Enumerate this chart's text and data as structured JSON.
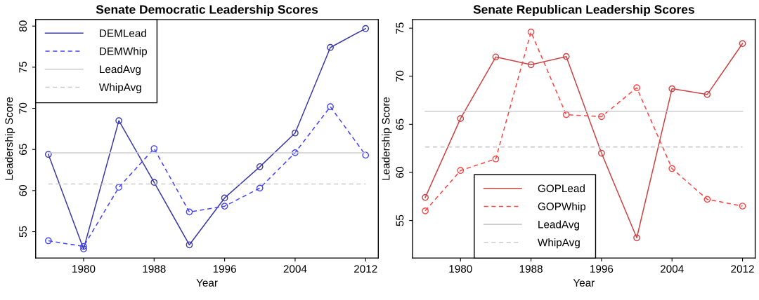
{
  "chart_data": [
    {
      "type": "line",
      "title": "Senate Democratic Leadership Scores",
      "xlabel": "Year",
      "ylabel": "Leadership Score",
      "x": [
        1976,
        1980,
        1984,
        1988,
        1992,
        1996,
        2000,
        2004,
        2008,
        2012
      ],
      "series": [
        {
          "name": "DEMLead",
          "color": "#3b3ba8",
          "line_style": "solid",
          "values": [
            64.4,
            52.9,
            68.5,
            61.0,
            53.4,
            59.1,
            62.9,
            67.0,
            77.4,
            79.7
          ]
        },
        {
          "name": "DEMWhip",
          "color": "#4444ff",
          "line_style": "dashed",
          "values": [
            53.9,
            53.2,
            60.4,
            65.1,
            57.4,
            58.1,
            60.3,
            64.6,
            70.2,
            64.3
          ]
        }
      ],
      "ref_lines": [
        {
          "axis": "y",
          "value": 64.6,
          "label": "LeadAvg",
          "color": "#cccccc",
          "line_style": "solid"
        },
        {
          "axis": "y",
          "value": 60.8,
          "label": "WhipAvg",
          "color": "#cccccc",
          "line_style": "dashed"
        }
      ],
      "xlim": [
        1974.56,
        2013.44
      ],
      "xticks": [
        1980,
        1988,
        1996,
        2004,
        2012
      ],
      "ylim": [
        51.8,
        80.8
      ],
      "yticks": [
        55,
        60,
        65,
        70,
        75,
        80
      ],
      "marker": "circle",
      "grid": false,
      "legend": "top left"
    },
    {
      "type": "line",
      "title": "Senate Republican Leadership Scores",
      "xlabel": "Year",
      "ylabel": "Leadership Score",
      "x": [
        1976,
        1980,
        1984,
        1988,
        1992,
        1996,
        2000,
        2004,
        2008,
        2012
      ],
      "series": [
        {
          "name": "GOPLead",
          "color": "#cc4444",
          "line_style": "solid",
          "values": [
            57.4,
            65.6,
            72.0,
            71.2,
            72.05,
            62.0,
            53.2,
            68.7,
            68.1,
            73.4
          ]
        },
        {
          "name": "GOPWhip",
          "color": "#ff4444",
          "line_style": "dashed",
          "values": [
            56.0,
            60.2,
            61.4,
            74.6,
            66.0,
            65.8,
            68.8,
            60.4,
            57.2,
            56.5
          ]
        }
      ],
      "ref_lines": [
        {
          "axis": "y",
          "value": 66.35,
          "label": "LeadAvg",
          "color": "#cccccc",
          "line_style": "solid"
        },
        {
          "axis": "y",
          "value": 62.65,
          "label": "WhipAvg",
          "color": "#cccccc",
          "line_style": "dashed"
        }
      ],
      "xlim": [
        1974.56,
        2013.44
      ],
      "xticks": [
        1980,
        1988,
        1996,
        2004,
        2012
      ],
      "ylim": [
        51.1,
        75.9
      ],
      "yticks": [
        55,
        60,
        65,
        70,
        75
      ],
      "marker": "circle",
      "grid": false,
      "legend": "bottom"
    }
  ]
}
